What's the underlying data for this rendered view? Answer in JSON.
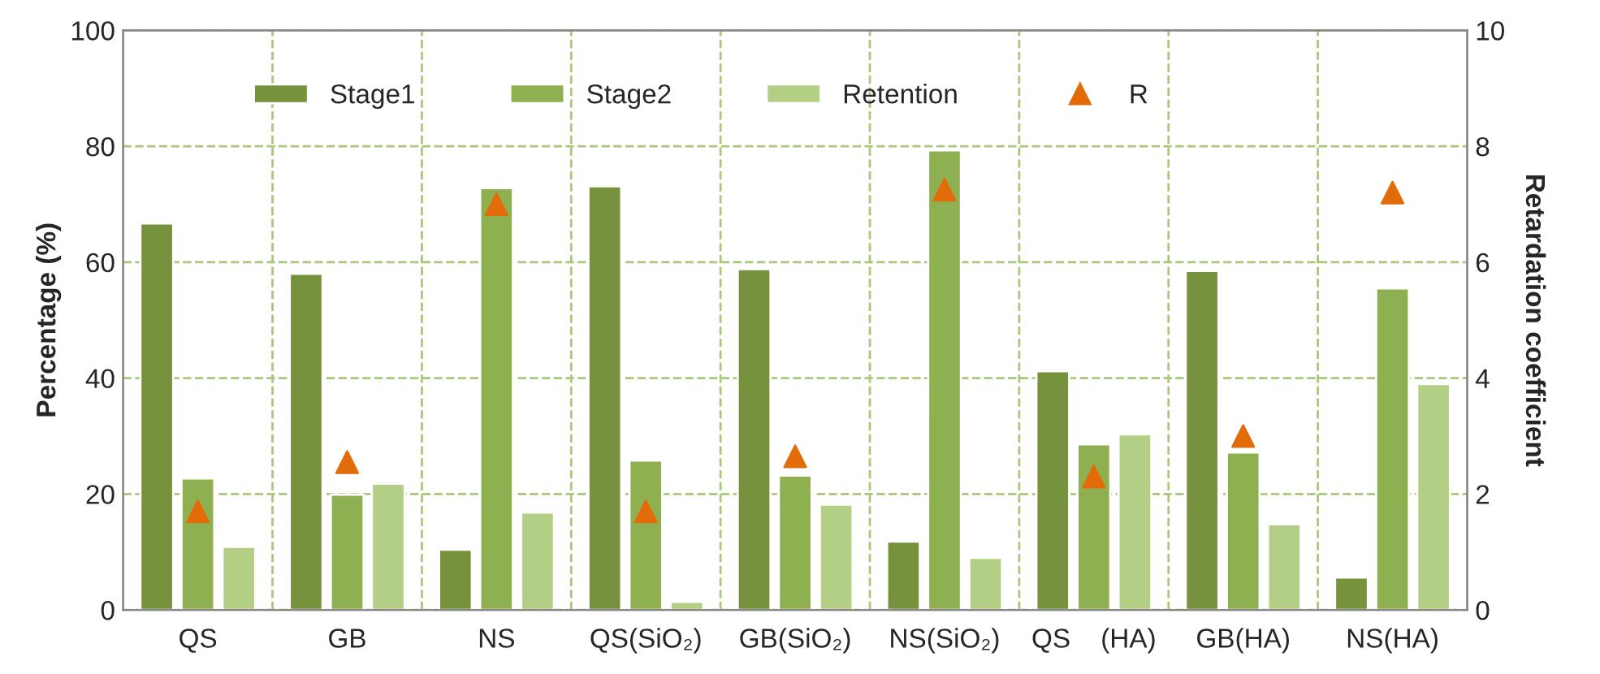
{
  "chart_data": {
    "type": "bar",
    "ylabel": "Percentage (%)",
    "y2label": "Retardation coefficient",
    "categories": [
      "QS",
      "GB",
      "NS",
      "QS(SiO₂)",
      "GB(SiO₂)",
      "NS(SiO₂)",
      "QS    (HA)",
      "GB(HA)",
      "NS(HA)"
    ],
    "series": [
      {
        "name": "Stage1",
        "color": "#76923c",
        "values": [
          66.7,
          58.0,
          10.4,
          73.1,
          58.8,
          11.8,
          41.2,
          58.5,
          5.6
        ]
      },
      {
        "name": "Stage2",
        "color": "#8fb051",
        "values": [
          22.7,
          19.9,
          72.8,
          25.8,
          23.2,
          79.3,
          28.6,
          27.2,
          55.5
        ]
      },
      {
        "name": "Retention",
        "color": "#b3cf86",
        "values": [
          10.9,
          21.8,
          16.8,
          1.4,
          18.2,
          9.0,
          30.3,
          14.8,
          39.0
        ]
      },
      {
        "name": "R",
        "type": "scatter",
        "axis": "y2",
        "marker": "triangle",
        "color": "#e36c0a",
        "values": [
          1.7,
          2.55,
          7.0,
          1.7,
          2.65,
          7.25,
          2.3,
          3.0,
          7.2
        ]
      }
    ],
    "ylim": [
      0,
      100
    ],
    "yticks": [
      0,
      20,
      40,
      60,
      80,
      100
    ],
    "y2lim": [
      0,
      10
    ],
    "y2ticks": [
      0,
      2,
      4,
      6,
      8,
      10
    ],
    "grid": true,
    "legend": "top"
  }
}
